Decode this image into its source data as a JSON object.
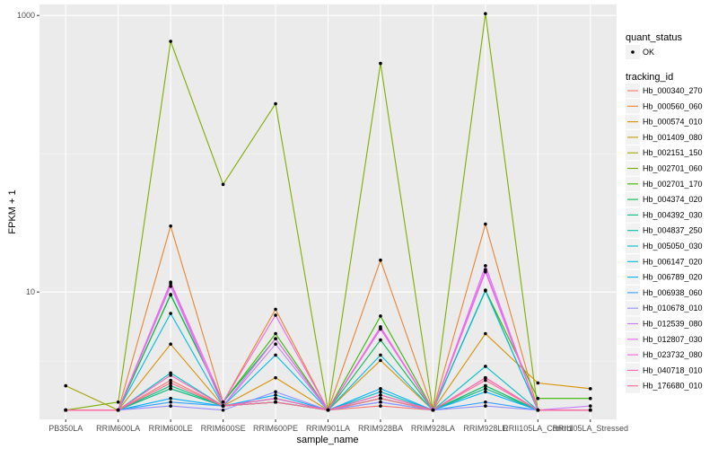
{
  "chart_data": {
    "type": "line",
    "xlabel": "sample_name",
    "ylabel": "FPKM + 1",
    "y_scale": "log10",
    "ylim": [
      1.2,
      1200
    ],
    "y_ticks": [
      10,
      1000
    ],
    "y_tick_labels": [
      "10",
      "1000"
    ],
    "categories": [
      "PB350LA",
      "RRIM600LA",
      "RRIM600LE",
      "RRIM600SE",
      "RRIM600PE",
      "RRIM901LA",
      "RRIM928BA",
      "RRIM928LA",
      "RRIM928LE",
      "RRII105LA_Control",
      "RRII105LA_Stressed"
    ],
    "grid": true,
    "legend_position": "right",
    "legends": [
      {
        "title": "quant_status",
        "entries": [
          {
            "label": "OK",
            "shape": "point"
          }
        ]
      },
      {
        "title": "tracking_id",
        "entries": [
          "Hb_000340_270",
          "Hb_000560_060",
          "Hb_000574_010",
          "Hb_001409_080",
          "Hb_002151_150",
          "Hb_002701_060",
          "Hb_002701_170",
          "Hb_004374_020",
          "Hb_004392_030",
          "Hb_004837_250",
          "Hb_005050_030",
          "Hb_006147_020",
          "Hb_006789_020",
          "Hb_006938_060",
          "Hb_010678_010",
          "Hb_012539_080",
          "Hb_012807_030",
          "Hb_023732_080",
          "Hb_040718_010",
          "Hb_176680_010"
        ]
      }
    ],
    "series": [
      {
        "name": "Hb_000340_270",
        "color": "#F8766D",
        "values": [
          1.4,
          1.4,
          2.3,
          1.5,
          1.6,
          1.4,
          1.5,
          1.4,
          2.4,
          1.4,
          1.4
        ]
      },
      {
        "name": "Hb_000560_060",
        "color": "#EA8331",
        "values": [
          1.4,
          1.4,
          30,
          1.6,
          7.5,
          1.4,
          17,
          1.4,
          31,
          1.4,
          1.4
        ]
      },
      {
        "name": "Hb_000574_010",
        "color": "#D89000",
        "values": [
          1.4,
          1.4,
          4.2,
          1.5,
          2.4,
          1.4,
          3.2,
          1.4,
          5,
          2.2,
          2.0
        ]
      },
      {
        "name": "Hb_001409_080",
        "color": "#C09B00",
        "values": [
          1.4,
          1.4,
          2.0,
          1.5,
          1.6,
          1.4,
          1.7,
          1.4,
          2.1,
          1.4,
          1.4
        ]
      },
      {
        "name": "Hb_002151_150",
        "color": "#A3A500",
        "values": [
          2.1,
          1.4,
          2.0,
          1.5,
          1.6,
          1.4,
          1.7,
          1.4,
          2.0,
          1.4,
          1.4
        ]
      },
      {
        "name": "Hb_002701_060",
        "color": "#7CAE00",
        "values": [
          1.4,
          1.6,
          650,
          60,
          230,
          1.4,
          450,
          1.4,
          1030,
          1.4,
          1.4
        ]
      },
      {
        "name": "Hb_002701_170",
        "color": "#39B600",
        "values": [
          1.4,
          1.4,
          9.5,
          1.6,
          5,
          1.4,
          6.7,
          1.4,
          10.3,
          1.7,
          1.7
        ]
      },
      {
        "name": "Hb_004374_020",
        "color": "#00BB4E",
        "values": [
          1.4,
          1.4,
          9.6,
          1.6,
          4.6,
          1.4,
          4.5,
          1.4,
          10.3,
          1.4,
          1.4
        ]
      },
      {
        "name": "Hb_004392_030",
        "color": "#00BF7D",
        "values": [
          1.4,
          1.4,
          2.1,
          1.5,
          1.7,
          1.4,
          1.8,
          1.4,
          2.1,
          1.4,
          1.4
        ]
      },
      {
        "name": "Hb_004837_250",
        "color": "#00C1A3",
        "values": [
          1.4,
          1.4,
          2.0,
          1.5,
          1.6,
          1.4,
          1.7,
          1.4,
          2.0,
          1.4,
          1.4
        ]
      },
      {
        "name": "Hb_005050_030",
        "color": "#00BFC4",
        "values": [
          1.4,
          1.4,
          2.6,
          1.5,
          1.7,
          1.4,
          1.9,
          1.4,
          2.9,
          1.4,
          1.4
        ]
      },
      {
        "name": "Hb_006147_020",
        "color": "#00BAE0",
        "values": [
          1.4,
          1.4,
          7,
          1.5,
          3.5,
          1.4,
          3.5,
          1.4,
          10.2,
          1.4,
          1.4
        ]
      },
      {
        "name": "Hb_006789_020",
        "color": "#00B0F6",
        "values": [
          1.4,
          1.4,
          1.7,
          1.5,
          1.8,
          1.4,
          2.0,
          1.4,
          1.9,
          1.4,
          1.4
        ]
      },
      {
        "name": "Hb_006938_060",
        "color": "#35A2FF",
        "values": [
          1.4,
          1.4,
          1.6,
          1.5,
          1.6,
          1.4,
          1.6,
          1.4,
          1.6,
          1.4,
          1.4
        ]
      },
      {
        "name": "Hb_010678_010",
        "color": "#9590FF",
        "values": [
          1.4,
          1.4,
          1.5,
          1.4,
          1.9,
          1.4,
          1.6,
          1.4,
          1.5,
          1.4,
          1.4
        ]
      },
      {
        "name": "Hb_012539_080",
        "color": "#C77CFF",
        "values": [
          1.4,
          1.4,
          11,
          1.5,
          4.2,
          1.4,
          5.4,
          1.4,
          14.5,
          1.4,
          1.5
        ]
      },
      {
        "name": "Hb_012807_030",
        "color": "#E76BF3",
        "values": [
          1.4,
          1.4,
          11.5,
          1.5,
          4.6,
          1.4,
          5.6,
          1.4,
          15.5,
          1.4,
          1.4
        ]
      },
      {
        "name": "Hb_023732_080",
        "color": "#FA62DB",
        "values": [
          1.4,
          1.4,
          11.8,
          1.6,
          6.8,
          1.4,
          5.5,
          1.4,
          14,
          1.4,
          1.4
        ]
      },
      {
        "name": "Hb_040718_010",
        "color": "#FF62BC",
        "values": [
          1.4,
          1.4,
          2.5,
          1.5,
          1.7,
          1.4,
          1.8,
          1.4,
          2.4,
          1.4,
          1.4
        ]
      },
      {
        "name": "Hb_176680_010",
        "color": "#FF6C91",
        "values": [
          1.4,
          1.4,
          2.2,
          1.5,
          1.6,
          1.4,
          1.7,
          1.4,
          2.3,
          1.4,
          1.4
        ]
      }
    ]
  }
}
